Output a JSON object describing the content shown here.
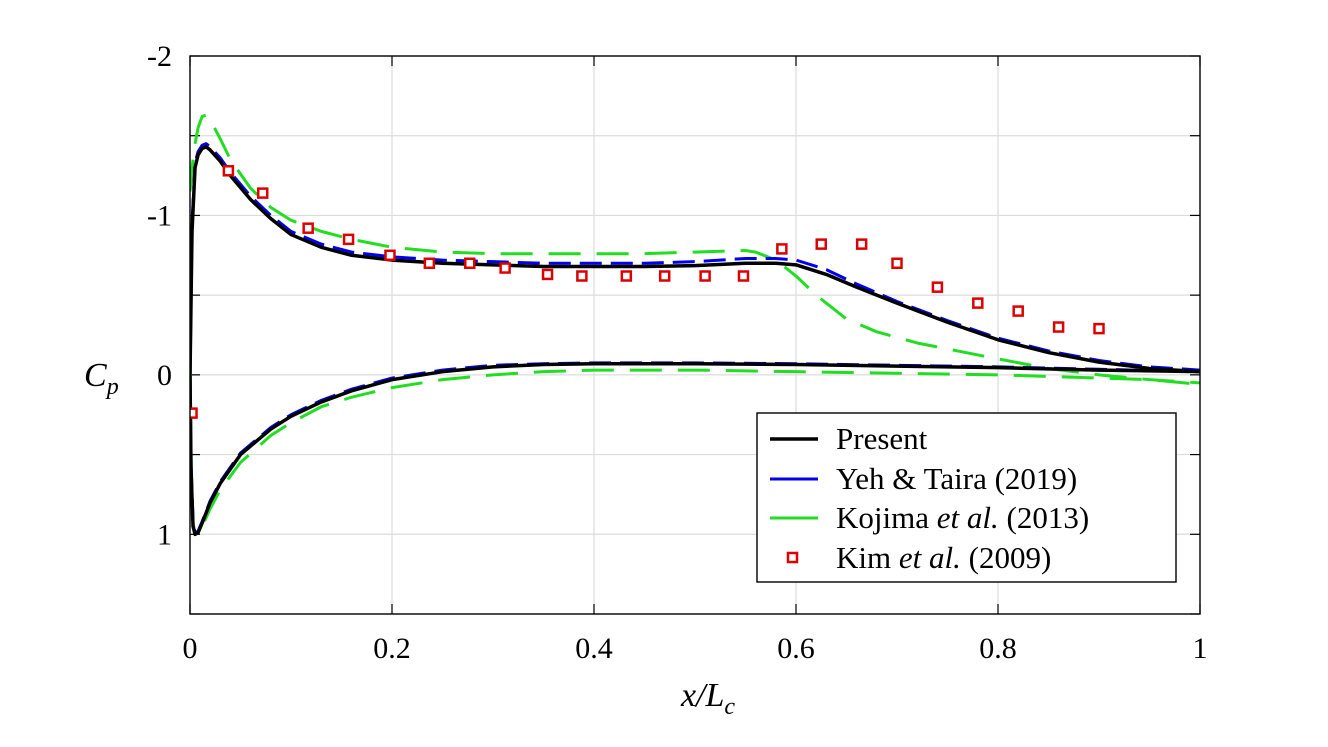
{
  "chart_data": {
    "type": "line",
    "title": "",
    "xlabel": {
      "main": "x/L",
      "sub": "c"
    },
    "ylabel": {
      "main": "C",
      "sub": "p"
    },
    "xlim": [
      0,
      1
    ],
    "ylim": [
      1.5,
      -2
    ],
    "y_reversed": true,
    "xticks": [
      0,
      0.2,
      0.4,
      0.6,
      0.8,
      1
    ],
    "xtick_labels": [
      "0",
      "0.2",
      "0.4",
      "0.6",
      "0.8",
      "1"
    ],
    "yticks": [
      -2,
      -1.5,
      -1,
      -0.5,
      0,
      0.5,
      1,
      1.5
    ],
    "ytick_labels": [
      "-2",
      "",
      "-1",
      "",
      "0",
      "",
      "1",
      ""
    ],
    "grid": true,
    "legend_position": "bottom-right",
    "legend": [
      {
        "segments": [
          {
            "text": "Present",
            "italic": false
          }
        ]
      },
      {
        "segments": [
          {
            "text": "Yeh & Taira (2019)",
            "italic": false
          }
        ]
      },
      {
        "segments": [
          {
            "text": "Kojima ",
            "italic": false
          },
          {
            "text": "et al.",
            "italic": true
          },
          {
            "text": " (2013)",
            "italic": false
          }
        ]
      },
      {
        "segments": [
          {
            "text": "Kim ",
            "italic": false
          },
          {
            "text": "et al.",
            "italic": true
          },
          {
            "text": " (2009)",
            "italic": false
          }
        ]
      }
    ],
    "series": [
      {
        "name": "Present",
        "style": "solid",
        "color": "#000000",
        "upper": {
          "x": [
            0,
            0.002,
            0.005,
            0.008,
            0.012,
            0.016,
            0.02,
            0.03,
            0.04,
            0.06,
            0.08,
            0.1,
            0.13,
            0.16,
            0.2,
            0.25,
            0.3,
            0.35,
            0.4,
            0.45,
            0.5,
            0.55,
            0.58,
            0.6,
            0.63,
            0.66,
            0.7,
            0.75,
            0.8,
            0.85,
            0.9,
            0.95,
            1.0
          ],
          "y": [
            0.0,
            -0.9,
            -1.3,
            -1.38,
            -1.42,
            -1.43,
            -1.41,
            -1.34,
            -1.25,
            -1.1,
            -0.98,
            -0.88,
            -0.8,
            -0.75,
            -0.72,
            -0.7,
            -0.69,
            -0.68,
            -0.68,
            -0.68,
            -0.685,
            -0.7,
            -0.7,
            -0.69,
            -0.63,
            -0.55,
            -0.45,
            -0.33,
            -0.22,
            -0.14,
            -0.08,
            -0.04,
            -0.02
          ]
        },
        "lower": {
          "x": [
            0,
            0.001,
            0.003,
            0.005,
            0.008,
            0.012,
            0.02,
            0.03,
            0.05,
            0.08,
            0.1,
            0.13,
            0.16,
            0.2,
            0.25,
            0.3,
            0.35,
            0.4,
            0.5,
            0.6,
            0.7,
            0.8,
            0.9,
            1.0
          ],
          "y": [
            0.0,
            0.6,
            0.95,
            1.0,
            0.99,
            0.93,
            0.8,
            0.68,
            0.5,
            0.34,
            0.26,
            0.17,
            0.1,
            0.03,
            -0.02,
            -0.05,
            -0.065,
            -0.07,
            -0.07,
            -0.065,
            -0.055,
            -0.045,
            -0.03,
            -0.02
          ]
        }
      },
      {
        "name": "Yeh & Taira (2019)",
        "style": "dashed",
        "color": "#0000ee",
        "upper": {
          "x": [
            0,
            0.002,
            0.005,
            0.008,
            0.012,
            0.016,
            0.02,
            0.03,
            0.04,
            0.06,
            0.08,
            0.1,
            0.13,
            0.16,
            0.2,
            0.25,
            0.3,
            0.35,
            0.4,
            0.45,
            0.5,
            0.55,
            0.58,
            0.6,
            0.63,
            0.66,
            0.7,
            0.75,
            0.8,
            0.85,
            0.9,
            0.95,
            1.0
          ],
          "y": [
            0.0,
            -0.95,
            -1.33,
            -1.4,
            -1.44,
            -1.45,
            -1.43,
            -1.36,
            -1.27,
            -1.12,
            -1.0,
            -0.9,
            -0.82,
            -0.77,
            -0.74,
            -0.72,
            -0.71,
            -0.7,
            -0.7,
            -0.7,
            -0.71,
            -0.73,
            -0.73,
            -0.72,
            -0.66,
            -0.57,
            -0.46,
            -0.34,
            -0.23,
            -0.15,
            -0.09,
            -0.05,
            -0.03
          ]
        },
        "lower": {
          "x": [
            0,
            0.001,
            0.003,
            0.005,
            0.008,
            0.012,
            0.02,
            0.03,
            0.05,
            0.08,
            0.1,
            0.13,
            0.16,
            0.2,
            0.25,
            0.3,
            0.35,
            0.4,
            0.5,
            0.6,
            0.7,
            0.8,
            0.9,
            1.0
          ],
          "y": [
            0.0,
            0.55,
            0.92,
            0.99,
            0.98,
            0.92,
            0.79,
            0.67,
            0.49,
            0.33,
            0.25,
            0.16,
            0.09,
            0.02,
            -0.03,
            -0.06,
            -0.07,
            -0.075,
            -0.075,
            -0.07,
            -0.06,
            -0.05,
            -0.035,
            -0.02
          ]
        }
      },
      {
        "name": "Kojima et al. (2013)",
        "style": "longdash",
        "color": "#22dd22",
        "upper": {
          "x": [
            0,
            0.002,
            0.005,
            0.008,
            0.012,
            0.016,
            0.02,
            0.03,
            0.04,
            0.06,
            0.08,
            0.1,
            0.13,
            0.16,
            0.2,
            0.25,
            0.3,
            0.35,
            0.4,
            0.45,
            0.5,
            0.55,
            0.56,
            0.58,
            0.6,
            0.62,
            0.65,
            0.68,
            0.72,
            0.76,
            0.8,
            0.85,
            0.9,
            0.95,
            1.0
          ],
          "y": [
            -1.15,
            -1.3,
            -1.45,
            -1.55,
            -1.62,
            -1.63,
            -1.6,
            -1.48,
            -1.35,
            -1.17,
            -1.05,
            -0.97,
            -0.9,
            -0.85,
            -0.8,
            -0.77,
            -0.76,
            -0.76,
            -0.76,
            -0.76,
            -0.77,
            -0.78,
            -0.77,
            -0.72,
            -0.62,
            -0.5,
            -0.35,
            -0.27,
            -0.2,
            -0.15,
            -0.1,
            -0.04,
            0.0,
            0.03,
            0.05
          ]
        },
        "lower": {
          "x": [
            0,
            0.001,
            0.003,
            0.005,
            0.008,
            0.012,
            0.02,
            0.03,
            0.05,
            0.08,
            0.1,
            0.13,
            0.16,
            0.2,
            0.25,
            0.3,
            0.35,
            0.4,
            0.5,
            0.6,
            0.7,
            0.8,
            0.9,
            0.95,
            1.0
          ],
          "y": [
            -0.4,
            0.5,
            0.93,
            1.0,
            0.99,
            0.95,
            0.84,
            0.72,
            0.55,
            0.38,
            0.3,
            0.2,
            0.14,
            0.08,
            0.03,
            0.0,
            -0.02,
            -0.03,
            -0.03,
            -0.02,
            -0.01,
            0.0,
            0.02,
            0.03,
            0.06
          ]
        }
      },
      {
        "name": "Kim et al. (2009)",
        "style": "marker",
        "color": "#dd0000",
        "x": [
          0.002,
          0.038,
          0.072,
          0.117,
          0.157,
          0.198,
          0.237,
          0.277,
          0.312,
          0.354,
          0.388,
          0.432,
          0.47,
          0.51,
          0.548,
          0.586,
          0.625,
          0.665,
          0.7,
          0.74,
          0.78,
          0.82,
          0.86,
          0.9
        ],
        "y": [
          0.24,
          -1.28,
          -1.14,
          -0.92,
          -0.85,
          -0.75,
          -0.7,
          -0.7,
          -0.67,
          -0.63,
          -0.62,
          -0.62,
          -0.62,
          -0.62,
          -0.62,
          -0.79,
          -0.82,
          -0.82,
          -0.7,
          -0.55,
          -0.45,
          -0.4,
          -0.3,
          -0.29
        ]
      }
    ]
  }
}
